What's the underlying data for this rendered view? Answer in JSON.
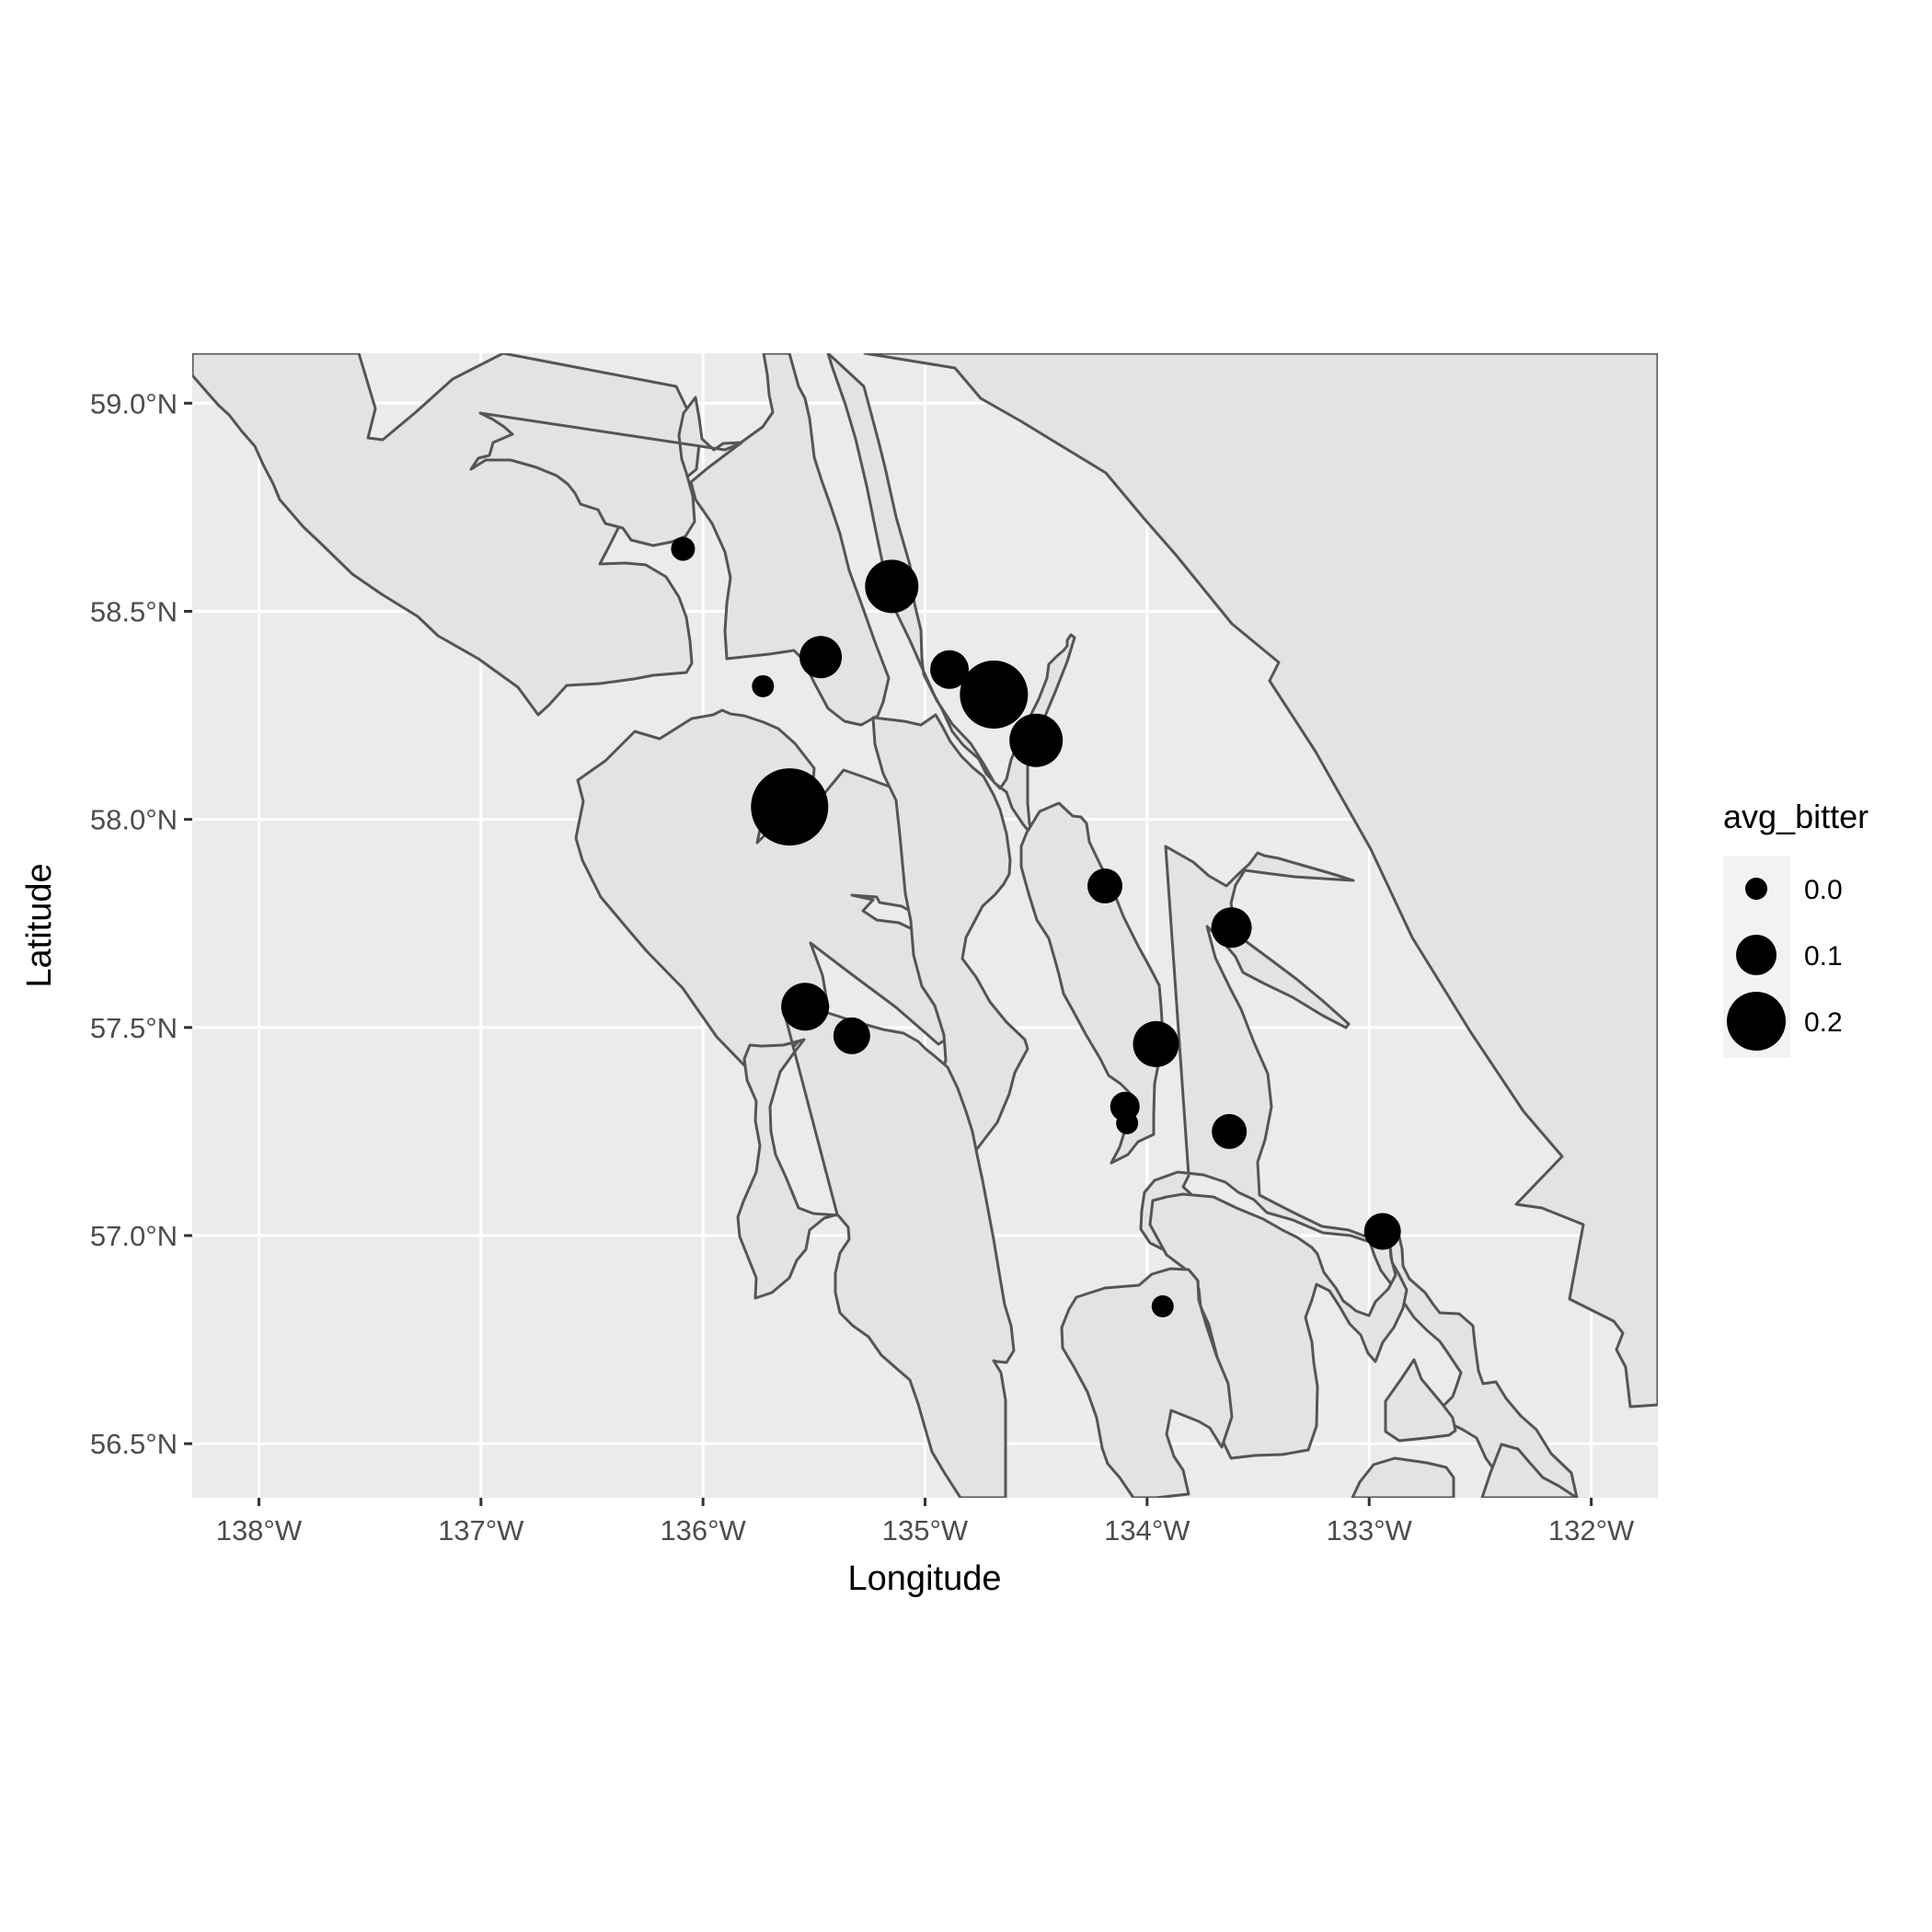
{
  "chart_data": {
    "type": "scatter",
    "xlabel": "Longitude",
    "ylabel": "Latitude",
    "xlim": [
      -138.3,
      -131.7
    ],
    "ylim": [
      56.37,
      59.12
    ],
    "x_ticks": [
      {
        "value": -138,
        "label": "138°W"
      },
      {
        "value": -137,
        "label": "137°W"
      },
      {
        "value": -136,
        "label": "136°W"
      },
      {
        "value": -135,
        "label": "135°W"
      },
      {
        "value": -134,
        "label": "134°W"
      },
      {
        "value": -133,
        "label": "133°W"
      },
      {
        "value": -132,
        "label": "132°W"
      }
    ],
    "y_ticks": [
      {
        "value": 56.5,
        "label": "56.5°N"
      },
      {
        "value": 57.0,
        "label": "57.0°N"
      },
      {
        "value": 57.5,
        "label": "57.5°N"
      },
      {
        "value": 58.0,
        "label": "58.0°N"
      },
      {
        "value": 58.5,
        "label": "58.5°N"
      },
      {
        "value": 59.0,
        "label": "59.0°N"
      }
    ],
    "grid": true,
    "panel_background": "#ebebeb",
    "land_color": "#e3e3e3",
    "coast_color": "#555555",
    "point_color": "#000000",
    "size_variable": "avg_bitter",
    "legend": {
      "title": "avg_bitter",
      "position": "right",
      "entries": [
        {
          "label": "0.0",
          "value": 0.0
        },
        {
          "label": "0.1",
          "value": 0.1
        },
        {
          "label": "0.2",
          "value": 0.2
        }
      ]
    },
    "points": [
      {
        "lon": -136.09,
        "lat": 58.65,
        "avg_bitter": 0.01
      },
      {
        "lon": -135.15,
        "lat": 58.56,
        "avg_bitter": 0.17
      },
      {
        "lon": -135.47,
        "lat": 58.39,
        "avg_bitter": 0.11
      },
      {
        "lon": -135.73,
        "lat": 58.32,
        "avg_bitter": 0.0
      },
      {
        "lon": -134.89,
        "lat": 58.36,
        "avg_bitter": 0.09
      },
      {
        "lon": -134.69,
        "lat": 58.3,
        "avg_bitter": 0.25
      },
      {
        "lon": -134.5,
        "lat": 58.19,
        "avg_bitter": 0.17
      },
      {
        "lon": -135.61,
        "lat": 58.03,
        "avg_bitter": 0.3
      },
      {
        "lon": -134.19,
        "lat": 57.84,
        "avg_bitter": 0.07
      },
      {
        "lon": -133.62,
        "lat": 57.74,
        "avg_bitter": 0.1
      },
      {
        "lon": -135.54,
        "lat": 57.55,
        "avg_bitter": 0.14
      },
      {
        "lon": -135.33,
        "lat": 57.48,
        "avg_bitter": 0.08
      },
      {
        "lon": -133.96,
        "lat": 57.46,
        "avg_bitter": 0.13
      },
      {
        "lon": -134.1,
        "lat": 57.31,
        "avg_bitter": 0.04
      },
      {
        "lon": -134.09,
        "lat": 57.27,
        "avg_bitter": -0.02
      },
      {
        "lon": -133.63,
        "lat": 57.25,
        "avg_bitter": 0.07
      },
      {
        "lon": -132.94,
        "lat": 57.01,
        "avg_bitter": 0.08
      },
      {
        "lon": -133.93,
        "lat": 56.83,
        "avg_bitter": 0.0
      }
    ]
  }
}
